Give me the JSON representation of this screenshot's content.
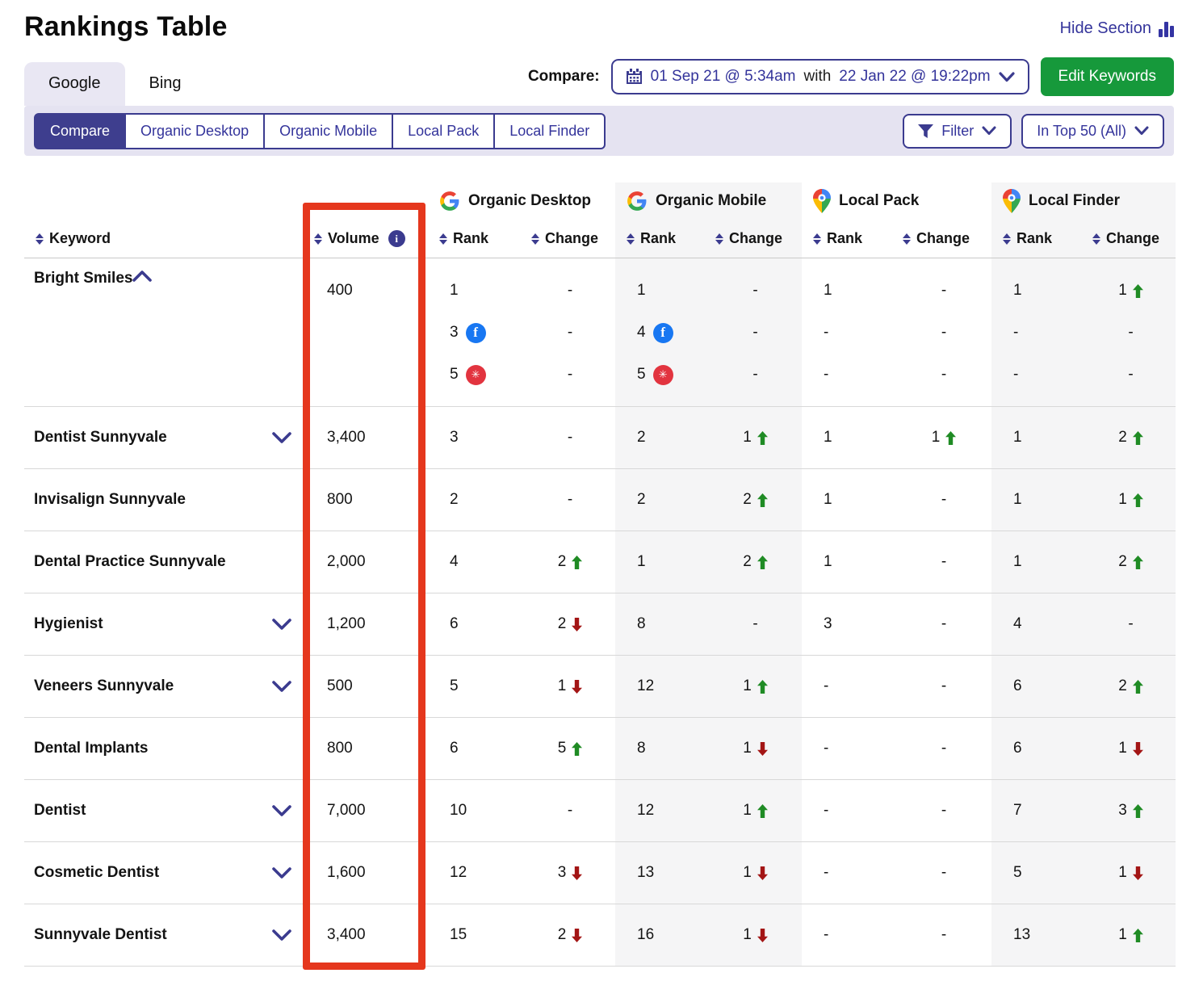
{
  "header": {
    "title": "Rankings Table",
    "hide_section": "Hide Section"
  },
  "tabs": [
    {
      "label": "Google",
      "active": true
    },
    {
      "label": "Bing",
      "active": false
    }
  ],
  "compare": {
    "label": "Compare:",
    "date_from": "01 Sep 21 @ 5:34am",
    "joiner": "with",
    "date_to": "22 Jan 22 @ 19:22pm"
  },
  "edit_keywords_label": "Edit Keywords",
  "segments": [
    "Compare",
    "Organic Desktop",
    "Organic Mobile",
    "Local Pack",
    "Local Finder"
  ],
  "filter_label": "Filter",
  "top_filter_label": "In Top 50 (All)",
  "colors": {
    "accent": "#3b3b8f",
    "green_arrow": "#1f8b24",
    "red_arrow": "#a31515",
    "highlight_box": "#e5371d",
    "button_green": "#16993b",
    "facebook": "#1877f2",
    "yelp": "#e2343f",
    "band": "#f5f5f6"
  },
  "icons": {
    "facebook": "f",
    "yelp": "✳"
  },
  "table": {
    "keyword_header": "Keyword",
    "volume_header": "Volume",
    "groups": [
      {
        "label": "Organic Desktop",
        "icon": "google-g"
      },
      {
        "label": "Organic Mobile",
        "icon": "google-g"
      },
      {
        "label": "Local Pack",
        "icon": "maps-pin"
      },
      {
        "label": "Local Finder",
        "icon": "maps-pin"
      }
    ],
    "subcols": [
      "Rank",
      "Change"
    ],
    "rows": [
      {
        "keyword": "Bright Smiles",
        "expand": "collapse",
        "volume": "400",
        "lines": [
          [
            {
              "t": "1"
            },
            {
              "t": "-"
            },
            {
              "t": "1"
            },
            {
              "t": "-"
            },
            {
              "t": "1"
            },
            {
              "t": "-"
            },
            {
              "t": "1"
            },
            {
              "t": "1",
              "dir": "up"
            }
          ],
          [
            {
              "t": "3",
              "icon": "facebook"
            },
            {
              "t": "-"
            },
            {
              "t": "4",
              "icon": "facebook"
            },
            {
              "t": "-"
            },
            {
              "t": "-"
            },
            {
              "t": "-"
            },
            {
              "t": "-"
            },
            {
              "t": "-"
            }
          ],
          [
            {
              "t": "5",
              "icon": "yelp"
            },
            {
              "t": "-"
            },
            {
              "t": "5",
              "icon": "yelp"
            },
            {
              "t": "-"
            },
            {
              "t": "-"
            },
            {
              "t": "-"
            },
            {
              "t": "-"
            },
            {
              "t": "-"
            }
          ]
        ]
      },
      {
        "keyword": "Dentist Sunnyvale",
        "expand": "expand",
        "volume": "3,400",
        "lines": [
          [
            {
              "t": "3"
            },
            {
              "t": "-"
            },
            {
              "t": "2"
            },
            {
              "t": "1",
              "dir": "up"
            },
            {
              "t": "1"
            },
            {
              "t": "1",
              "dir": "up"
            },
            {
              "t": "1"
            },
            {
              "t": "2",
              "dir": "up"
            }
          ]
        ]
      },
      {
        "keyword": "Invisalign Sunnyvale",
        "expand": null,
        "volume": "800",
        "lines": [
          [
            {
              "t": "2"
            },
            {
              "t": "-"
            },
            {
              "t": "2"
            },
            {
              "t": "2",
              "dir": "up"
            },
            {
              "t": "1"
            },
            {
              "t": "-"
            },
            {
              "t": "1"
            },
            {
              "t": "1",
              "dir": "up"
            }
          ]
        ]
      },
      {
        "keyword": "Dental Practice Sunnyvale",
        "expand": null,
        "volume": "2,000",
        "lines": [
          [
            {
              "t": "4"
            },
            {
              "t": "2",
              "dir": "up"
            },
            {
              "t": "1"
            },
            {
              "t": "2",
              "dir": "up"
            },
            {
              "t": "1"
            },
            {
              "t": "-"
            },
            {
              "t": "1"
            },
            {
              "t": "2",
              "dir": "up"
            }
          ]
        ]
      },
      {
        "keyword": "Hygienist",
        "expand": "expand",
        "volume": "1,200",
        "lines": [
          [
            {
              "t": "6"
            },
            {
              "t": "2",
              "dir": "down"
            },
            {
              "t": "8"
            },
            {
              "t": "-"
            },
            {
              "t": "3"
            },
            {
              "t": "-"
            },
            {
              "t": "4"
            },
            {
              "t": "-"
            }
          ]
        ]
      },
      {
        "keyword": "Veneers Sunnyvale",
        "expand": "expand",
        "volume": "500",
        "lines": [
          [
            {
              "t": "5"
            },
            {
              "t": "1",
              "dir": "down"
            },
            {
              "t": "12"
            },
            {
              "t": "1",
              "dir": "up"
            },
            {
              "t": "-"
            },
            {
              "t": "-"
            },
            {
              "t": "6"
            },
            {
              "t": "2",
              "dir": "up"
            }
          ]
        ]
      },
      {
        "keyword": "Dental Implants",
        "expand": null,
        "volume": "800",
        "lines": [
          [
            {
              "t": "6"
            },
            {
              "t": "5",
              "dir": "up"
            },
            {
              "t": "8"
            },
            {
              "t": "1",
              "dir": "down"
            },
            {
              "t": "-"
            },
            {
              "t": "-"
            },
            {
              "t": "6"
            },
            {
              "t": "1",
              "dir": "down"
            }
          ]
        ]
      },
      {
        "keyword": "Dentist",
        "expand": "expand",
        "volume": "7,000",
        "lines": [
          [
            {
              "t": "10"
            },
            {
              "t": "-"
            },
            {
              "t": "12"
            },
            {
              "t": "1",
              "dir": "up"
            },
            {
              "t": "-"
            },
            {
              "t": "-"
            },
            {
              "t": "7"
            },
            {
              "t": "3",
              "dir": "up"
            }
          ]
        ]
      },
      {
        "keyword": "Cosmetic Dentist",
        "expand": "expand",
        "volume": "1,600",
        "lines": [
          [
            {
              "t": "12"
            },
            {
              "t": "3",
              "dir": "down"
            },
            {
              "t": "13"
            },
            {
              "t": "1",
              "dir": "down"
            },
            {
              "t": "-"
            },
            {
              "t": "-"
            },
            {
              "t": "5"
            },
            {
              "t": "1",
              "dir": "down"
            }
          ]
        ]
      },
      {
        "keyword": "Sunnyvale Dentist",
        "expand": "expand",
        "volume": "3,400",
        "lines": [
          [
            {
              "t": "15"
            },
            {
              "t": "2",
              "dir": "down"
            },
            {
              "t": "16"
            },
            {
              "t": "1",
              "dir": "down"
            },
            {
              "t": "-"
            },
            {
              "t": "-"
            },
            {
              "t": "13"
            },
            {
              "t": "1",
              "dir": "up"
            }
          ]
        ]
      }
    ]
  }
}
